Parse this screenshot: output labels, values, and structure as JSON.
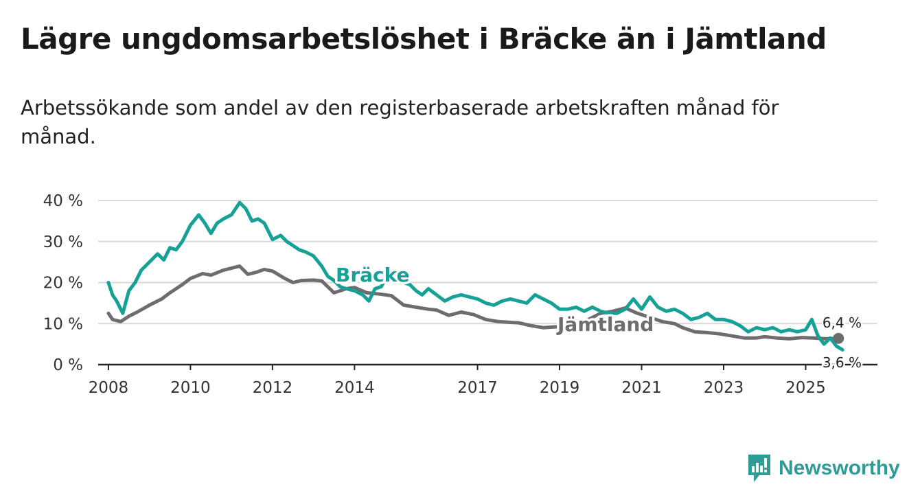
{
  "title": "Lägre ungdomsarbetslöshet i Bräcke än i Jämtland",
  "subtitle": "Arbetssökande som andel av den registerbaserade arbetskraften månad för månad.",
  "brand": {
    "name": "Newsworthy",
    "icon": "bar-chart-exclamation-icon"
  },
  "colors": {
    "bracke": "#16a196",
    "jamtland": "#6e6c70",
    "grid": "#d9d9d9",
    "axis": "#222222"
  },
  "chart_data": {
    "type": "line",
    "title": "Lägre ungdomsarbetslöshet i Bräcke än i Jämtland",
    "xlabel": "",
    "ylabel": "",
    "xlim": [
      2007.75,
      2026.75
    ],
    "ylim": [
      0,
      40
    ],
    "y_ticks": [
      0,
      10,
      20,
      30,
      40
    ],
    "y_tick_labels": [
      "0 %",
      "10 %",
      "20 %",
      "30 %",
      "40 %"
    ],
    "x_ticks": [
      2008,
      2010,
      2012,
      2014,
      2017,
      2019,
      2021,
      2023,
      2025
    ],
    "x_tick_labels": [
      "2008",
      "2010",
      "2012",
      "2014",
      "2017",
      "2019",
      "2021",
      "2023",
      "2025"
    ],
    "grid": true,
    "series": [
      {
        "name": "Jämtland",
        "label": "Jämtland",
        "end_label": "6,4 %",
        "x": [
          2008.0,
          2008.1,
          2008.3,
          2008.5,
          2008.7,
          2009.0,
          2009.3,
          2009.5,
          2009.8,
          2010.0,
          2010.3,
          2010.5,
          2010.8,
          2011.0,
          2011.2,
          2011.4,
          2011.6,
          2011.8,
          2012.0,
          2012.3,
          2012.5,
          2012.7,
          2013.0,
          2013.2,
          2013.5,
          2013.8,
          2014.0,
          2014.3,
          2014.6,
          2014.9,
          2015.2,
          2015.5,
          2015.8,
          2016.0,
          2016.3,
          2016.6,
          2016.9,
          2017.2,
          2017.5,
          2017.8,
          2018.0,
          2018.3,
          2018.6,
          2018.9,
          2019.2,
          2019.5,
          2019.8,
          2020.0,
          2020.3,
          2020.6,
          2020.9,
          2021.2,
          2021.5,
          2021.8,
          2022.0,
          2022.3,
          2022.6,
          2022.9,
          2023.2,
          2023.5,
          2023.8,
          2024.0,
          2024.3,
          2024.6,
          2024.9,
          2025.2,
          2025.5,
          2025.8
        ],
        "values": [
          12.5,
          11.0,
          10.5,
          11.8,
          12.8,
          14.5,
          16.0,
          17.5,
          19.5,
          21.0,
          22.2,
          21.8,
          23.0,
          23.5,
          24.0,
          22.0,
          22.5,
          23.2,
          22.8,
          21.0,
          20.0,
          20.5,
          20.6,
          20.4,
          17.5,
          18.5,
          18.8,
          17.5,
          17.2,
          16.8,
          14.5,
          14.0,
          13.5,
          13.3,
          12.0,
          12.8,
          12.2,
          11.0,
          10.5,
          10.3,
          10.2,
          9.5,
          9.0,
          9.2,
          9.0,
          10.0,
          11.5,
          12.5,
          13.0,
          13.8,
          12.5,
          11.5,
          10.5,
          10.0,
          9.0,
          8.0,
          7.8,
          7.5,
          7.0,
          6.5,
          6.5,
          6.8,
          6.5,
          6.3,
          6.6,
          6.5,
          6.3,
          6.4
        ]
      },
      {
        "name": "Bräcke",
        "label": "Bräcke",
        "end_label": "3,6 %",
        "x": [
          2008.0,
          2008.1,
          2008.2,
          2008.35,
          2008.5,
          2008.65,
          2008.8,
          2009.0,
          2009.2,
          2009.35,
          2009.5,
          2009.65,
          2009.8,
          2010.0,
          2010.2,
          2010.35,
          2010.5,
          2010.65,
          2010.8,
          2011.0,
          2011.2,
          2011.35,
          2011.5,
          2011.65,
          2011.8,
          2012.0,
          2012.2,
          2012.35,
          2012.5,
          2012.65,
          2012.8,
          2013.0,
          2013.2,
          2013.35,
          2013.5,
          2013.65,
          2013.8,
          2014.0,
          2014.2,
          2014.35,
          2014.5,
          2014.65,
          2014.8,
          2015.0,
          2015.2,
          2015.35,
          2015.5,
          2015.65,
          2015.8,
          2016.0,
          2016.2,
          2016.4,
          2016.6,
          2016.8,
          2017.0,
          2017.2,
          2017.4,
          2017.6,
          2017.8,
          2018.0,
          2018.2,
          2018.4,
          2018.6,
          2018.8,
          2019.0,
          2019.2,
          2019.4,
          2019.6,
          2019.8,
          2020.0,
          2020.2,
          2020.4,
          2020.6,
          2020.8,
          2021.0,
          2021.2,
          2021.4,
          2021.6,
          2021.8,
          2022.0,
          2022.2,
          2022.4,
          2022.6,
          2022.8,
          2023.0,
          2023.2,
          2023.4,
          2023.6,
          2023.8,
          2024.0,
          2024.2,
          2024.4,
          2024.6,
          2024.8,
          2025.0,
          2025.15,
          2025.3,
          2025.45,
          2025.6,
          2025.75,
          2025.9
        ],
        "values": [
          20.0,
          17.0,
          15.5,
          12.5,
          18.0,
          20.0,
          23.0,
          25.0,
          27.0,
          25.5,
          28.5,
          28.0,
          30.0,
          34.0,
          36.5,
          34.5,
          32.0,
          34.5,
          35.5,
          36.5,
          39.5,
          38.0,
          35.0,
          35.5,
          34.5,
          30.5,
          31.5,
          30.0,
          29.0,
          28.0,
          27.5,
          26.5,
          24.0,
          21.5,
          20.5,
          19.0,
          18.5,
          18.0,
          17.0,
          15.5,
          18.5,
          19.0,
          21.5,
          22.0,
          20.0,
          19.5,
          18.0,
          17.0,
          18.5,
          17.0,
          15.5,
          16.5,
          17.0,
          16.5,
          16.0,
          15.0,
          14.5,
          15.5,
          16.0,
          15.5,
          15.0,
          17.0,
          16.0,
          15.0,
          13.5,
          13.5,
          14.0,
          13.0,
          14.0,
          13.0,
          12.5,
          12.5,
          13.5,
          16.0,
          13.5,
          16.5,
          14.0,
          13.0,
          13.5,
          12.5,
          11.0,
          11.5,
          12.5,
          11.0,
          11.0,
          10.5,
          9.5,
          8.0,
          9.0,
          8.5,
          9.0,
          8.0,
          8.5,
          8.0,
          8.5,
          11.0,
          7.0,
          5.0,
          6.5,
          4.5,
          3.6
        ]
      }
    ]
  }
}
